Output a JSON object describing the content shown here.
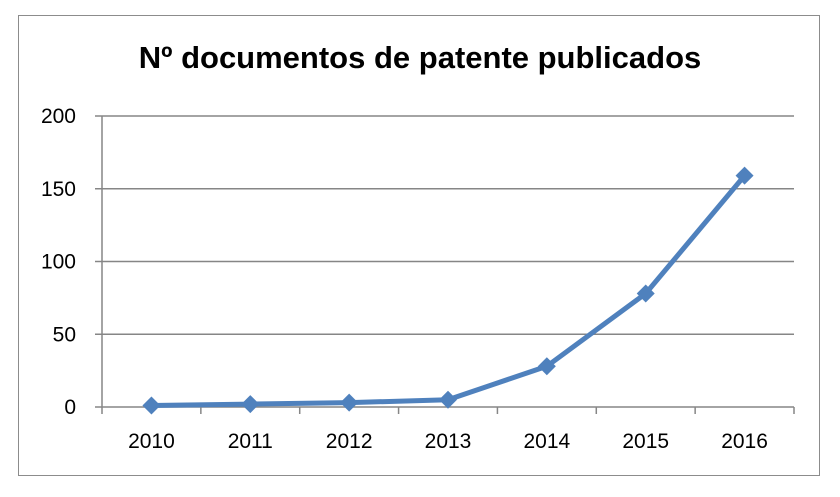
{
  "chart_data": {
    "type": "line",
    "title": "Nº documentos de patente publicados",
    "xlabel": "",
    "ylabel": "",
    "categories": [
      "2010",
      "2011",
      "2012",
      "2013",
      "2014",
      "2015",
      "2016"
    ],
    "series": [
      {
        "values": [
          1,
          2,
          3,
          5,
          28,
          78,
          159
        ],
        "color": "#4f81bd",
        "marker": "diamond"
      }
    ],
    "ylim": [
      0,
      200
    ],
    "yticks": [
      "0",
      "50",
      "100",
      "150",
      "200"
    ],
    "grid": true,
    "legend": "none"
  }
}
